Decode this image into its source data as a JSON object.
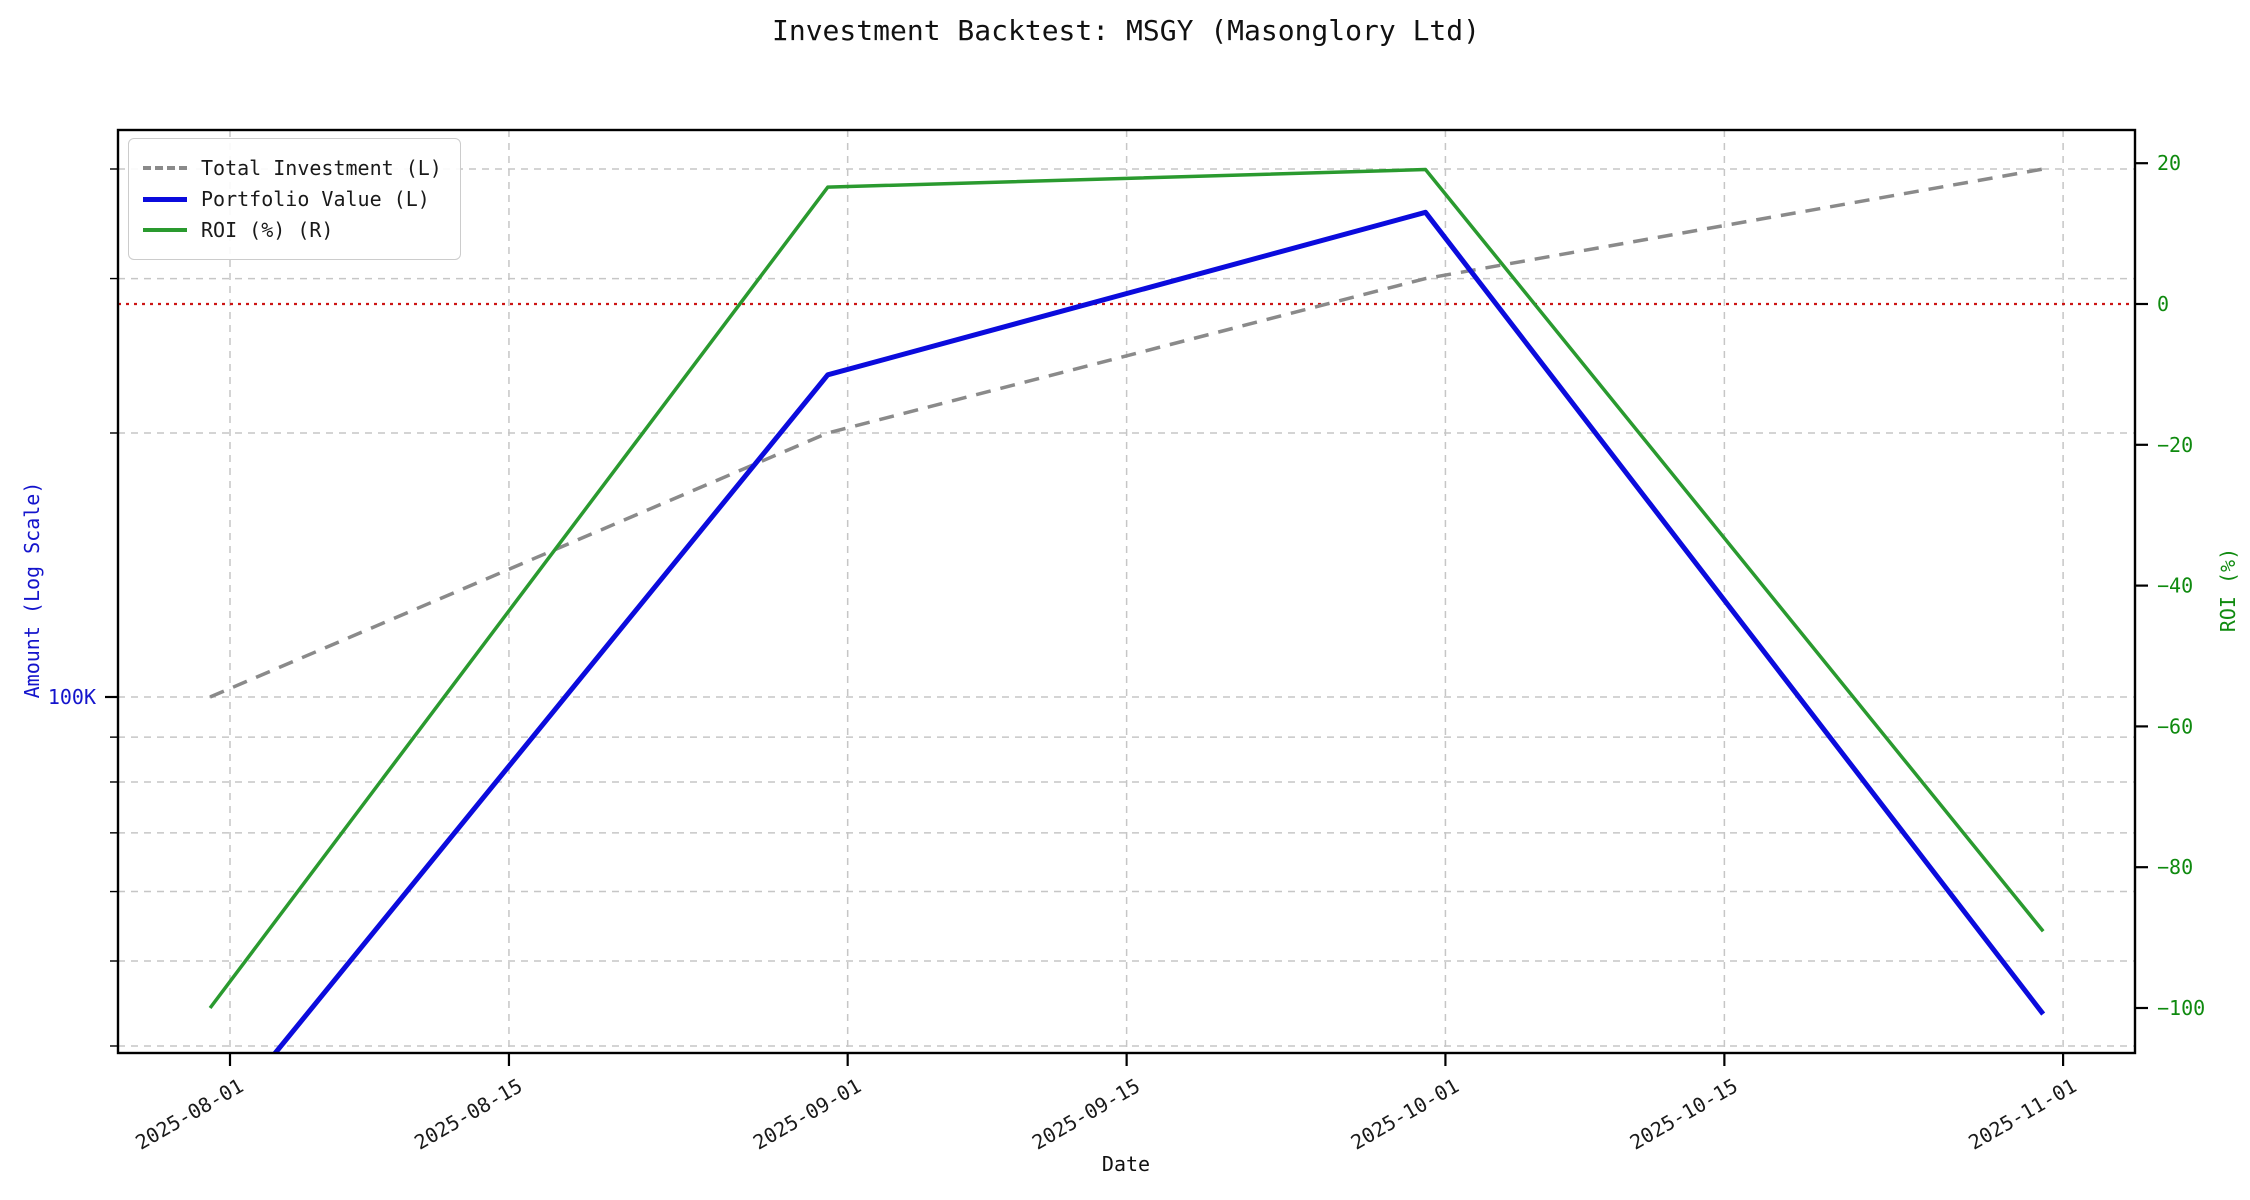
{
  "chart_data": {
    "type": "line",
    "title": "Investment Backtest: MSGY (Masonglory Ltd)",
    "xlabel": "Date",
    "ylabel_left": "Amount (Log Scale)",
    "ylabel_right": "ROI (%)",
    "x_dates": [
      "2025-07-31",
      "2025-08-31",
      "2025-09-30",
      "2025-10-31"
    ],
    "series": [
      {
        "name": "Total Investment (L)",
        "axis": "left",
        "style": "dashed",
        "color": "#8a8a8a",
        "values": [
          100000,
          200000,
          300000,
          400000
        ]
      },
      {
        "name": "Portfolio Value (L)",
        "axis": "left",
        "style": "solid",
        "color": "#0b0bdd",
        "values": [
          0,
          233000,
          357000,
          43500
        ]
      },
      {
        "name": "ROI (%) (R)",
        "axis": "right",
        "style": "solid",
        "color": "#2a9a2f",
        "values": [
          -100,
          16.6,
          19.1,
          -89.1
        ]
      }
    ],
    "x_tick_labels": [
      "2025-08-01",
      "2025-08-15",
      "2025-09-01",
      "2025-09-15",
      "2025-10-01",
      "2025-10-15",
      "2025-11-01"
    ],
    "left_axis": {
      "scale": "log",
      "major_tick": {
        "value": 100000,
        "label": "100K"
      },
      "gridline_values": [
        400000,
        300000,
        200000,
        100000,
        90000,
        80000,
        70000,
        60000,
        50000,
        40000
      ]
    },
    "right_axis": {
      "scale": "linear",
      "ticks": [
        {
          "value": 20,
          "label": "20"
        },
        {
          "value": 0,
          "label": "0"
        },
        {
          "value": -20,
          "label": "−20"
        },
        {
          "value": -40,
          "label": "−40"
        },
        {
          "value": -60,
          "label": "−60"
        },
        {
          "value": -80,
          "label": "−80"
        },
        {
          "value": -100,
          "label": "−100"
        }
      ],
      "range": [
        -106,
        25
      ]
    },
    "zero_line": {
      "value": 0,
      "color": "#cc1515",
      "style": "dotted"
    },
    "grid": true,
    "legend_position": "upper left",
    "colors": {
      "left_axis_text": "#1414cc",
      "right_axis_text": "#0f8a0f",
      "grid": "#c6c6c6",
      "spine": "#000000",
      "tick_text": "#1a1a1a"
    }
  }
}
